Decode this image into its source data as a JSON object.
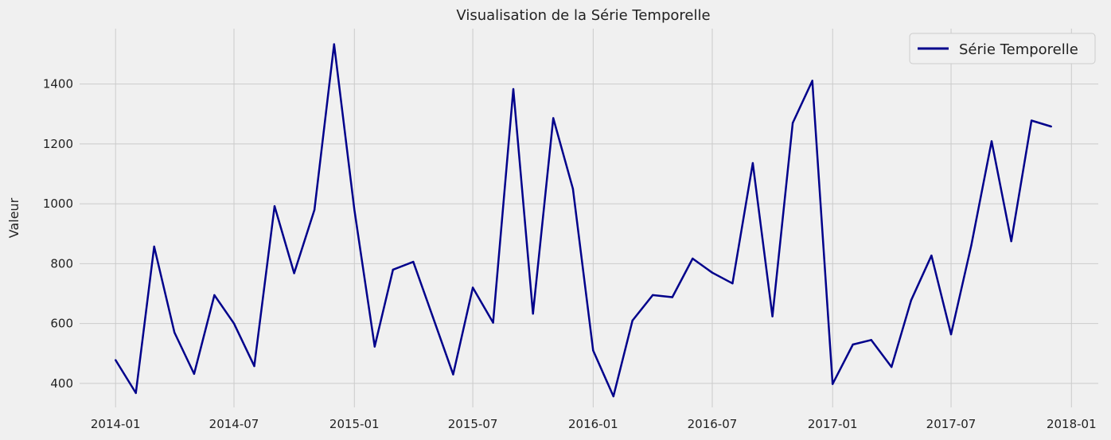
{
  "chart_data": {
    "type": "line",
    "title": "Visualisation de la Série Temporelle",
    "xlabel": "",
    "ylabel": "Valeur",
    "xlim": [
      "2013-11-07",
      "2018-02-11"
    ],
    "ylim": [
      320,
      1585
    ],
    "grid": true,
    "legend": {
      "position": "top-right"
    },
    "x_ticks": [
      "2014-01",
      "2014-07",
      "2015-01",
      "2015-07",
      "2016-01",
      "2016-07",
      "2017-01",
      "2017-07",
      "2018-01"
    ],
    "y_ticks": [
      400,
      600,
      800,
      1000,
      1200,
      1400
    ],
    "series": [
      {
        "name": "Série Temporelle",
        "color": "#00008b",
        "x": [
          "2014-01-01",
          "2014-02-01",
          "2014-03-01",
          "2014-04-01",
          "2014-05-01",
          "2014-06-01",
          "2014-07-01",
          "2014-08-01",
          "2014-09-01",
          "2014-10-01",
          "2014-11-01",
          "2014-12-01",
          "2015-01-01",
          "2015-02-01",
          "2015-03-01",
          "2015-04-01",
          "2015-05-01",
          "2015-06-01",
          "2015-07-01",
          "2015-08-01",
          "2015-09-01",
          "2015-10-01",
          "2015-11-01",
          "2015-12-01",
          "2016-01-01",
          "2016-02-01",
          "2016-03-01",
          "2016-04-01",
          "2016-05-01",
          "2016-06-01",
          "2016-07-01",
          "2016-08-01",
          "2016-09-01",
          "2016-10-01",
          "2016-11-01",
          "2016-12-01",
          "2017-01-01",
          "2017-02-01",
          "2017-03-01",
          "2017-04-01",
          "2017-05-01",
          "2017-06-01",
          "2017-07-01",
          "2017-08-01",
          "2017-09-01",
          "2017-10-01",
          "2017-11-01",
          "2017-12-01"
        ],
        "values": [
          478,
          368,
          857,
          570,
          432,
          695,
          600,
          458,
          992,
          768,
          980,
          1533,
          980,
          523,
          780,
          806,
          622,
          430,
          720,
          603,
          1383,
          633,
          1286,
          1050,
          510,
          357,
          610,
          695,
          688,
          817,
          770,
          734,
          1136,
          624,
          1270,
          1411,
          398,
          530,
          545,
          455,
          678,
          827,
          564,
          862,
          1209,
          875,
          1278,
          1258
        ]
      }
    ]
  }
}
